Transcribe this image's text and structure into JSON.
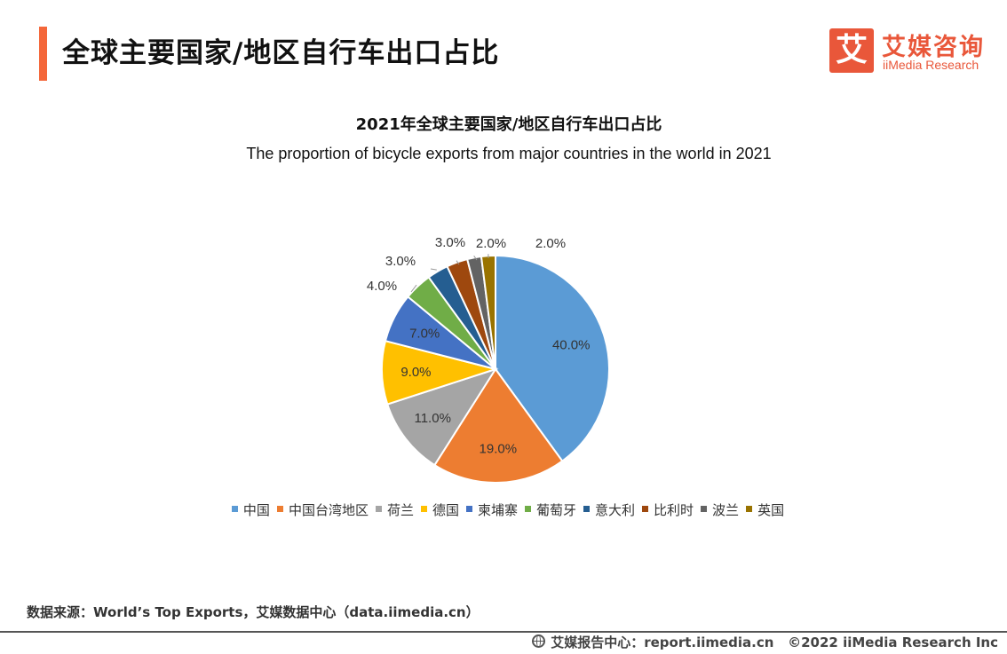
{
  "header": {
    "title": "全球主要国家/地区自行车出口占比"
  },
  "logo": {
    "mark": "艾",
    "name_cn": "艾媒咨询",
    "name_en": "iiMedia Research"
  },
  "footer": {
    "source": "数据来源：World’s Top Exports，艾媒数据中心（data.iimedia.cn）",
    "center": "艾媒报告中心：report.iimedia.cn",
    "copyright": "©2022  iiMedia Research  Inc"
  },
  "chart_data": {
    "type": "pie",
    "title": "2021年全球主要国家/地区自行车出口占比",
    "subtitle": "The proportion of bicycle exports from major countries in the world in 2021",
    "categories": [
      "中国",
      "中国台湾地区",
      "荷兰",
      "德国",
      "柬埔寨",
      "葡萄牙",
      "意大利",
      "比利时",
      "波兰",
      "英国"
    ],
    "values": [
      40.0,
      19.0,
      11.0,
      9.0,
      7.0,
      4.0,
      3.0,
      3.0,
      2.0,
      2.0
    ],
    "labels": [
      "40.0%",
      "19.0%",
      "11.0%",
      "9.0%",
      "7.0%",
      "4.0%",
      "3.0%",
      "3.0%",
      "2.0%",
      "2.0%"
    ],
    "colors": [
      "#5b9bd5",
      "#ed7d31",
      "#a5a5a5",
      "#ffc000",
      "#4472c4",
      "#70ad47",
      "#255e91",
      "#9e480e",
      "#636363",
      "#997300"
    ],
    "legend_position": "bottom",
    "start": "12 o'clock",
    "direction": "clockwise"
  }
}
